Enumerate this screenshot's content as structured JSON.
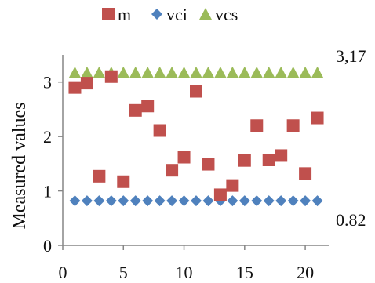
{
  "chart_data": {
    "type": "scatter",
    "xlim": [
      0,
      22
    ],
    "ylim": [
      0,
      3.5
    ],
    "x_ticks": [
      "0",
      "5",
      "10",
      "15",
      "20"
    ],
    "y_ticks": [
      "0",
      "1",
      "2",
      "3"
    ],
    "ylabel": "Measured values",
    "legend_position": "top",
    "series": [
      {
        "name": "m",
        "marker": "square",
        "color": "#C0504D",
        "x": [
          1,
          2,
          3,
          4,
          5,
          6,
          7,
          8,
          9,
          10,
          11,
          12,
          13,
          14,
          15,
          16,
          17,
          18,
          19,
          20,
          21
        ],
        "y": [
          2.9,
          2.98,
          1.27,
          3.1,
          1.17,
          2.48,
          2.56,
          2.11,
          1.38,
          1.62,
          2.83,
          1.49,
          0.93,
          1.1,
          1.56,
          2.2,
          1.57,
          1.65,
          2.2,
          1.32,
          2.34
        ]
      },
      {
        "name": "vci",
        "marker": "diamond",
        "color": "#4F81BD",
        "x": [
          1,
          2,
          3,
          4,
          5,
          6,
          7,
          8,
          9,
          10,
          11,
          12,
          13,
          14,
          15,
          16,
          17,
          18,
          19,
          20,
          21
        ],
        "y": [
          0.82,
          0.82,
          0.82,
          0.82,
          0.82,
          0.82,
          0.82,
          0.82,
          0.82,
          0.82,
          0.82,
          0.82,
          0.82,
          0.82,
          0.82,
          0.82,
          0.82,
          0.82,
          0.82,
          0.82,
          0.82
        ]
      },
      {
        "name": "vcs",
        "marker": "triangle",
        "color": "#9BBB59",
        "x": [
          1,
          2,
          3,
          4,
          5,
          6,
          7,
          8,
          9,
          10,
          11,
          12,
          13,
          14,
          15,
          16,
          17,
          18,
          19,
          20,
          21
        ],
        "y": [
          3.17,
          3.17,
          3.17,
          3.17,
          3.17,
          3.17,
          3.17,
          3.17,
          3.17,
          3.17,
          3.17,
          3.17,
          3.17,
          3.17,
          3.17,
          3.17,
          3.17,
          3.17,
          3.17,
          3.17,
          3.17
        ]
      }
    ],
    "annotations": [
      {
        "text": "3,17",
        "y": 3.17
      },
      {
        "text": "0.82",
        "y": 0.82
      }
    ],
    "grid": false
  }
}
